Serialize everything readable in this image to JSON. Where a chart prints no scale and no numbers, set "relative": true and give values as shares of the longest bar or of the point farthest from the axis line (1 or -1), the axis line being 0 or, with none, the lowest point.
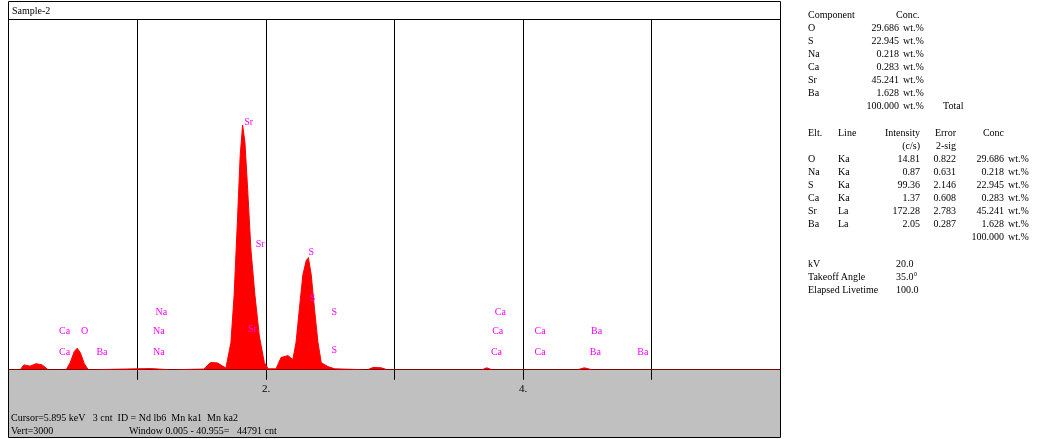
{
  "chart_data": {
    "type": "area",
    "title": "Sample-2",
    "relative": true,
    "x": [
      0.0,
      0.086,
      0.117,
      0.164,
      0.211,
      0.258,
      0.305,
      0.445,
      0.477,
      0.508,
      0.531,
      0.555,
      0.586,
      0.617,
      1.102,
      1.258,
      1.516,
      1.57,
      1.623,
      1.688,
      1.727,
      1.752,
      1.779,
      1.799,
      1.818,
      1.836,
      1.857,
      1.883,
      1.914,
      1.948,
      1.987,
      2.018,
      2.078,
      2.117,
      2.17,
      2.209,
      2.234,
      2.26,
      2.287,
      2.313,
      2.33,
      2.352,
      2.377,
      2.404,
      2.43,
      2.482,
      2.534,
      2.789,
      2.836,
      2.898,
      2.945,
      3.68,
      3.719,
      3.758,
      4.422,
      4.477,
      4.539,
      6.0
    ],
    "series": [
      {
        "color": "#ff0000",
        "values": [
          0,
          0,
          0.02,
          0.015,
          0.025,
          0.02,
          0,
          0,
          0.03,
          0.075,
          0.088,
          0.07,
          0.025,
          0,
          0.005,
          0,
          0.003,
          0.03,
          0.028,
          0.007,
          0.111,
          0.305,
          0.625,
          0.875,
          1,
          0.929,
          0.738,
          0.488,
          0.304,
          0.138,
          0.029,
          0.004,
          0.004,
          0.05,
          0.058,
          0.042,
          0.113,
          0.25,
          0.388,
          0.446,
          0.458,
          0.388,
          0.25,
          0.113,
          0.029,
          0.013,
          0.004,
          0,
          0.01,
          0.008,
          0,
          0,
          0.008,
          0,
          0,
          0.008,
          0,
          0
        ]
      }
    ],
    "xlim": [
      0,
      6
    ],
    "xticks": [
      {
        "value": 1,
        "label": null
      },
      {
        "value": 2,
        "label": "2."
      },
      {
        "value": 3,
        "label": null
      },
      {
        "value": 4,
        "label": "4."
      },
      {
        "value": 5,
        "label": null
      }
    ],
    "grid": true,
    "annotations": [
      {
        "text": "Sr",
        "x": 1.83,
        "y": 0.99
      },
      {
        "text": "Sr",
        "x": 1.92,
        "y": 0.49
      },
      {
        "text": "S",
        "x": 2.33,
        "y": 0.458
      },
      "Sr",
      "S",
      "S",
      "S",
      "Na",
      "Na",
      "Na",
      "Ca",
      "Ca",
      "O",
      "Ba",
      "Ca",
      "Ca",
      "Ca",
      "Ca",
      "Ca",
      "Ba",
      "Ba",
      "Ba",
      "Cursor=5.895 keV   3 cnt  ID = Nd lb6  Mn ka1  Mn ka2",
      "Vert=3000",
      "Window 0.005 - 40.955=   44791 cnt",
      "Component\tConc.",
      "O\t29.686\twt.%",
      "S\t22.945\twt.%",
      "Na\t0.218\twt.%",
      "Ca\t0.283\twt.%",
      "Sr\t45.241\twt.%",
      "Ba\t1.628\twt.%",
      "\t100.000\twt.%\tTotal",
      "Elt.\tLine\tIntensity\tError\tConc",
      "\t\t(c/s)\t2-sig",
      "O\tKa\t14.81\t0.822\t29.686\twt.%",
      "Na\tKa\t0.87\t0.631\t0.218\twt.%",
      "S\tKa\t99.36\t2.146\t22.945\twt.%",
      "Ca\tKa\t1.37\t0.608\t0.283\twt.%",
      "Sr\tLa\t172.28\t2.783\t45.241\twt.%",
      "Ba\tLa\t2.05\t0.287\t1.628\twt.%",
      "\t\t\t\t100.000\twt.%",
      "kV\t20.0",
      "Takeoff Angle\t35.0°",
      "Elapsed Livetime\t100.0"
    ]
  }
}
